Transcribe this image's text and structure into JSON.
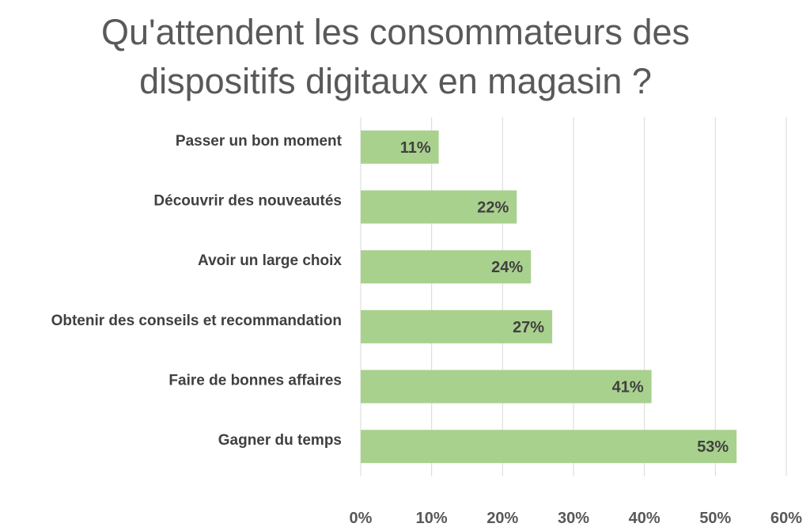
{
  "chart_data": {
    "type": "bar",
    "orientation": "horizontal",
    "title_lines": [
      "Qu'attendent les consommateurs des",
      "dispositifs digitaux en magasin ?"
    ],
    "categories": [
      "Passer un bon moment",
      "Découvrir des nouveautés",
      "Avoir un large choix",
      "Obtenir des conseils et recommandation",
      "Faire de bonnes affaires",
      "Gagner du temps"
    ],
    "values": [
      11,
      22,
      24,
      27,
      41,
      53
    ],
    "value_labels": [
      "11%",
      "22%",
      "24%",
      "27%",
      "41%",
      "53%"
    ],
    "xlim": [
      0,
      60
    ],
    "x_ticks": [
      0,
      10,
      20,
      30,
      40,
      50,
      60
    ],
    "x_tick_labels": [
      "0%",
      "10%",
      "20%",
      "30%",
      "40%",
      "50%",
      "60%"
    ],
    "grid": "vertical",
    "bar_color": "#a9d18e",
    "gridline_color": "#d9d9d9",
    "legend": "none"
  }
}
